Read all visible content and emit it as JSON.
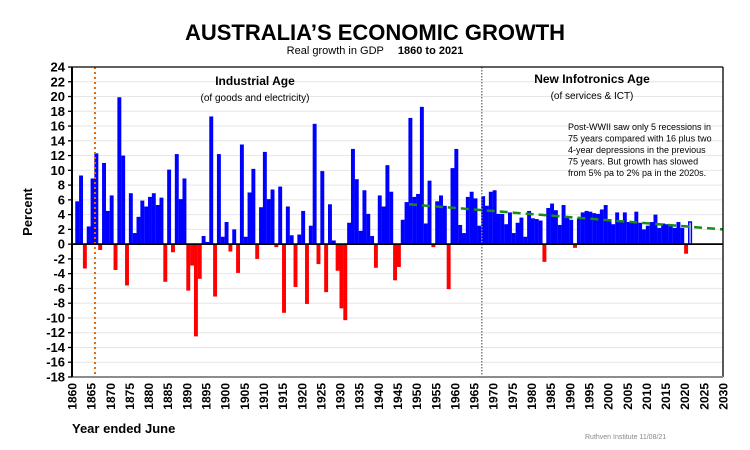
{
  "colors": {
    "positive": "#0000ff",
    "negative": "#ff0000",
    "industrial_divider": "#e46c0a",
    "infotronics_divider": "#808080",
    "trend": "#1a8a1a",
    "grid": "#e6e6e6"
  },
  "chart_data": {
    "type": "bar",
    "title": "AUSTRALIA’S ECONOMIC GROWTH",
    "subtitle": "Real growth  in GDP",
    "subtitle_range": "1860 to 2021",
    "xlabel": "Year ended June",
    "ylabel": "Percent",
    "xlim": [
      1860,
      2030
    ],
    "ylim": [
      -18,
      24
    ],
    "yticks": [
      24,
      22,
      20,
      18,
      16,
      14,
      12,
      10,
      8,
      6,
      4,
      2,
      0,
      -2,
      -4,
      -6,
      -8,
      -10,
      -12,
      -14,
      -16,
      -18
    ],
    "xticks": [
      1860,
      1865,
      1870,
      1875,
      1880,
      1885,
      1890,
      1895,
      1900,
      1905,
      1910,
      1915,
      1920,
      1925,
      1930,
      1935,
      1940,
      1945,
      1950,
      1955,
      1960,
      1965,
      1970,
      1975,
      1980,
      1985,
      1990,
      1995,
      2000,
      2005,
      2010,
      2015,
      2020,
      2025,
      2030
    ],
    "grid": true,
    "start_year": 1861,
    "values": [
      5.8,
      9.3,
      -3.3,
      2.4,
      8.9,
      12.3,
      -0.8,
      11.0,
      4.5,
      6.6,
      -3.5,
      19.9,
      12.0,
      -5.6,
      6.9,
      1.5,
      3.7,
      5.9,
      5.1,
      6.4,
      6.9,
      5.3,
      6.3,
      -5.1,
      10.1,
      -1.1,
      12.2,
      6.1,
      8.9,
      -6.3,
      -2.9,
      -12.5,
      -4.7,
      1.1,
      0.3,
      17.3,
      -7.1,
      12.2,
      1.0,
      3.0,
      -1.0,
      2.0,
      -3.9,
      13.5,
      1.0,
      7.0,
      10.2,
      -2.0,
      5.0,
      12.5,
      6.1,
      7.4,
      -0.4,
      7.8,
      -9.3,
      5.1,
      1.2,
      -5.8,
      1.3,
      4.5,
      -8.1,
      2.5,
      16.3,
      -2.7,
      9.9,
      -6.5,
      5.4,
      0.5,
      -3.6,
      -8.7,
      -10.3,
      2.9,
      12.9,
      8.8,
      1.8,
      7.3,
      4.1,
      1.1,
      -3.2,
      6.6,
      5.1,
      10.7,
      7.1,
      -4.9,
      -3.1,
      3.3,
      5.7,
      17.1,
      6.4,
      6.8,
      18.6,
      2.8,
      8.6,
      -0.4,
      5.8,
      6.6,
      5.2,
      -6.1,
      10.3,
      12.9,
      2.6,
      1.5,
      6.4,
      7.1,
      6.2,
      2.5,
      6.5,
      5.2,
      7.1,
      7.3,
      4.1,
      4.1,
      2.7,
      4.3,
      1.5,
      2.9,
      3.6,
      1.0,
      4.5,
      3.5,
      3.4,
      3.2,
      -2.4,
      4.9,
      5.5,
      4.6,
      2.6,
      5.3,
      3.8,
      3.3,
      -0.5,
      3.5,
      4.3,
      4.5,
      4.4,
      4.2,
      4.1,
      4.7,
      5.3,
      3.4,
      2.7,
      4.3,
      3.1,
      4.3,
      3.0,
      3.0,
      4.4,
      2.9,
      2.0,
      2.5,
      3.0,
      4.0,
      2.2,
      2.8,
      2.7,
      2.6,
      2.2,
      3.0,
      2.2,
      -1.3,
      3.0
    ],
    "outlined_years": [
      2021
    ],
    "trend_line": {
      "start": [
        1948,
        5.4
      ],
      "end": [
        2030,
        2.0
      ],
      "style": "dashed"
    },
    "dividers": [
      {
        "year": 1866,
        "style": "dotted",
        "color_key": "industrial_divider"
      },
      {
        "year": 1967,
        "style": "dotted",
        "color_key": "infotronics_divider"
      }
    ],
    "annotations": {
      "industrial_title": "Industrial Age",
      "industrial_sub": "(of goods and electricity)",
      "infotronics_title": "New Infotronics Age",
      "infotronics_sub": "(of services & ICT)",
      "note_lines": [
        "Post-WWII saw only 5 recessions in",
        "75 years compared with 16 plus two",
        "4-year depressions in the previous",
        "75 years.  But growth has slowed",
        "from 5% pa to 2% pa in the 2020s."
      ],
      "credit": "Ruthven Institute 11/08/21"
    }
  }
}
